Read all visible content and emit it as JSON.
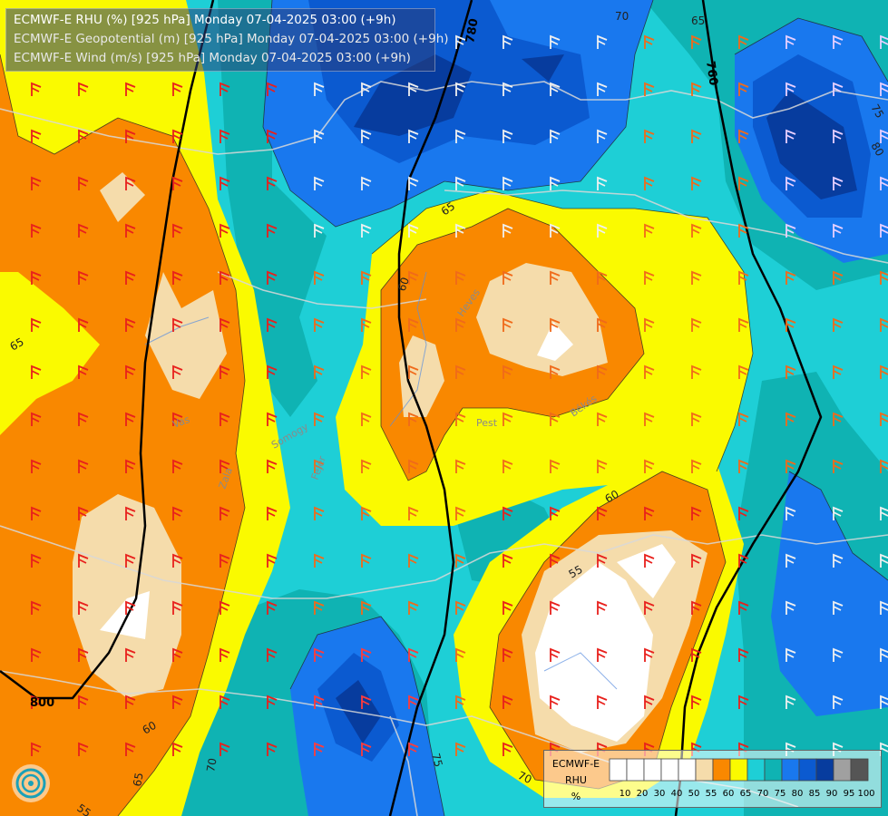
{
  "title": {
    "line1": "ECMWF-E RHU (%) [925 hPa] Monday 07-04-2025 03:00 (+9h)",
    "line2": "ECMWF-E Geopotential (m) [925 hPa] Monday 07-04-2025 03:00 (+9h)",
    "line3": "ECMWF-E Wind (m/s) [925 hPa] Monday 07-04-2025 03:00 (+9h)"
  },
  "legend": {
    "title_line1": "ECMWF-E",
    "title_line2": "RHU",
    "unit": "%",
    "levels": [
      "10",
      "20",
      "30",
      "40",
      "50",
      "55",
      "60",
      "65",
      "70",
      "75",
      "80",
      "85",
      "90",
      "95",
      "100"
    ],
    "colors": [
      "#ffffff",
      "#ffffff",
      "#ffffff",
      "#ffffff",
      "#ffffff",
      "#f5dcab",
      "#f98800",
      "#fafa00",
      "#1ecfd6",
      "#0fb3b3",
      "#1978ee",
      "#0b5ad0",
      "#073c9e",
      "#a0a0a0",
      "#555555"
    ]
  },
  "geopotential_labels": [
    "780",
    "760",
    "800"
  ],
  "rhu_contour_labels": [
    "70",
    "65",
    "65",
    "60",
    "65",
    "60",
    "55",
    "60",
    "55",
    "65",
    "70",
    "70",
    "75",
    "75",
    "80"
  ],
  "place_labels": [
    "Vas",
    "Zala",
    "Pest",
    "Heves",
    "Békés",
    "Somogy",
    "Fejér"
  ],
  "colors": {
    "rhu_50": "#ffffff",
    "rhu_55": "#f5dcab",
    "rhu_60": "#f98800",
    "rhu_65": "#fafa00",
    "rhu_70": "#1ecfd6",
    "rhu_75": "#0fb3b3",
    "rhu_80": "#1978ee",
    "rhu_85": "#0b5ad0",
    "rhu_90": "#073c9e",
    "geopotential_line": "#000000",
    "borders": "#c8c8c8"
  }
}
